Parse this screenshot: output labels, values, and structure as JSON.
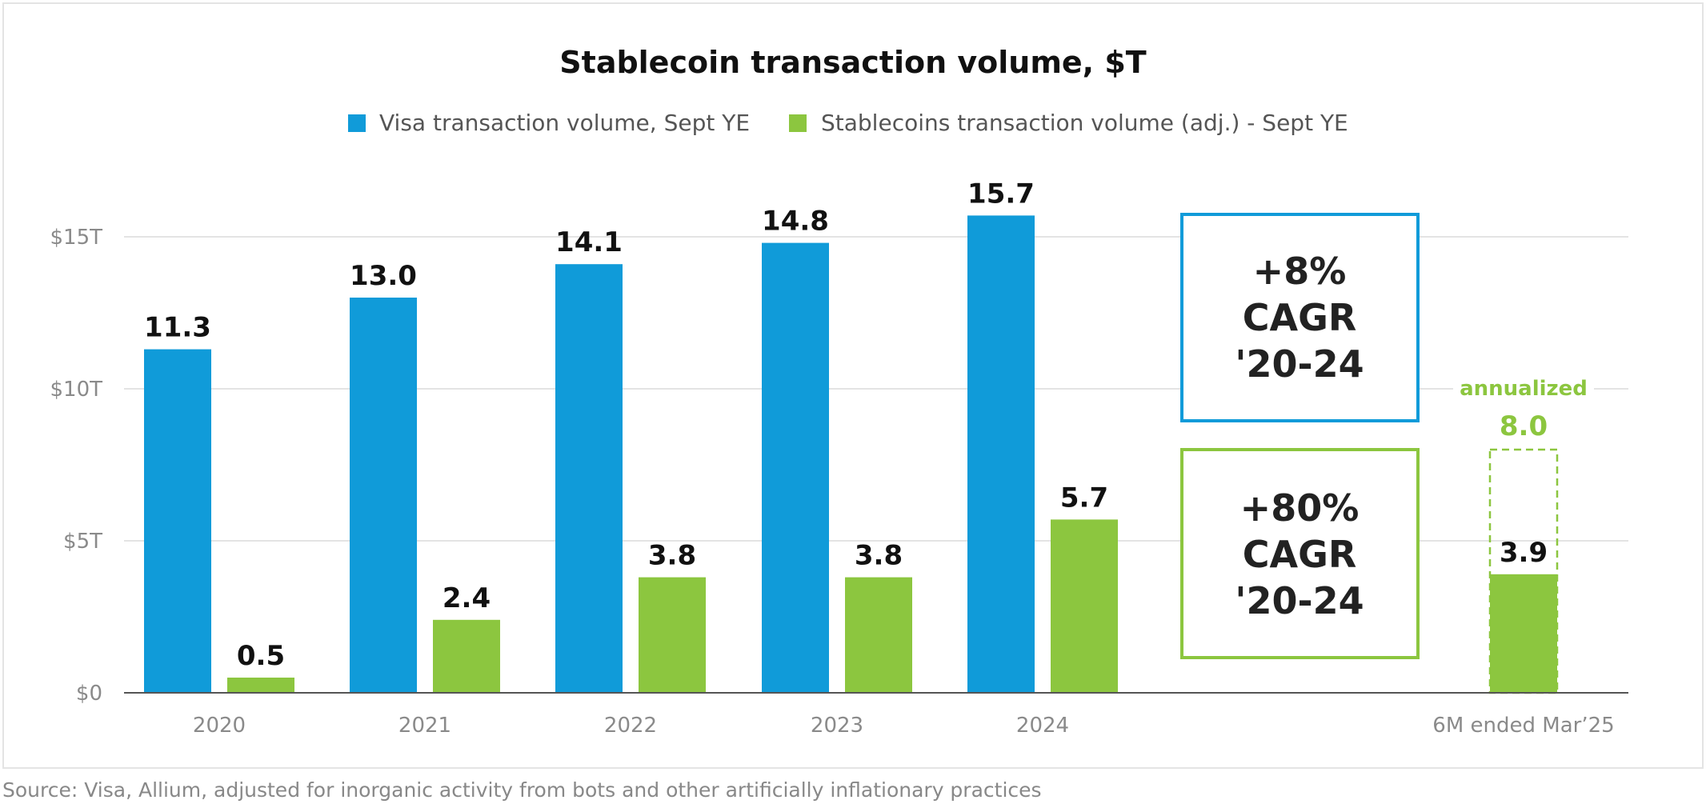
{
  "chart_data": {
    "type": "bar",
    "title": "Stablecoin transaction volume, $T",
    "categories": [
      "2020",
      "2021",
      "2022",
      "2023",
      "2024",
      "6M ended Mar’25"
    ],
    "series": [
      {
        "name": "Visa transaction volume, Sept YE",
        "color": "#109bd9",
        "values": [
          11.3,
          13.0,
          14.1,
          14.8,
          15.7,
          null
        ],
        "labels": [
          "11.3",
          "13.0",
          "14.1",
          "14.8",
          "15.7",
          ""
        ]
      },
      {
        "name": "Stablecoins transaction volume (adj.) - Sept YE",
        "color": "#8cc63f",
        "values": [
          0.5,
          2.4,
          3.8,
          3.8,
          5.7,
          3.9
        ],
        "labels": [
          "0.5",
          "2.4",
          "3.8",
          "3.8",
          "5.7",
          "3.9"
        ]
      }
    ],
    "annualized": {
      "label": "annualized",
      "value": 8.0,
      "value_label": "8.0"
    },
    "yticks": [
      {
        "value": 0,
        "label": "$0"
      },
      {
        "value": 5,
        "label": "$5T"
      },
      {
        "value": 10,
        "label": "$10T"
      },
      {
        "value": 15,
        "label": "$15T"
      }
    ],
    "ylim": [
      0,
      15.7
    ],
    "grid": true,
    "legend_position": "top-center",
    "callouts": [
      {
        "lines": [
          "+8%",
          "CAGR",
          "'20-24"
        ],
        "color": "#109bd9"
      },
      {
        "lines": [
          "+80%",
          "CAGR",
          "'20-24"
        ],
        "color": "#8cc63f"
      }
    ],
    "xlabel": "",
    "ylabel": ""
  },
  "source": "Source: Visa, Allium, adjusted for inorganic activity from bots and other artificially inflationary practices"
}
